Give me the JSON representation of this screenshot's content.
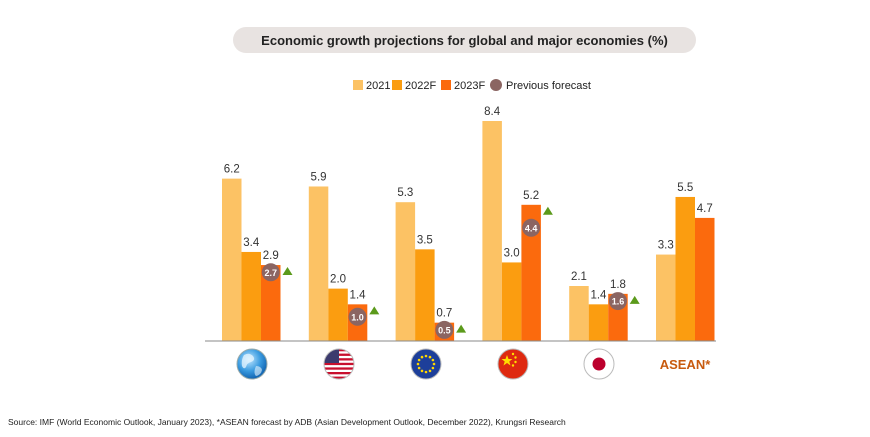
{
  "chart_data": {
    "type": "bar",
    "title": "Economic growth projections for global and major economies (%)",
    "categories": [
      "Global",
      "US",
      "EU",
      "China",
      "Japan",
      "ASEAN*"
    ],
    "category_icons": [
      "globe-icon",
      "us-flag-icon",
      "eu-flag-icon",
      "china-flag-icon",
      "japan-flag-icon",
      ""
    ],
    "category_text_labels": [
      "",
      "",
      "",
      "",
      "",
      "ASEAN*"
    ],
    "series": [
      {
        "name": "2021",
        "color": "#fcc264",
        "values": [
          6.2,
          5.9,
          5.3,
          8.4,
          2.1,
          3.3
        ]
      },
      {
        "name": "2022F",
        "color": "#fb9d10",
        "values": [
          3.4,
          2.0,
          3.5,
          3.0,
          1.4,
          5.5
        ]
      },
      {
        "name": "2023F",
        "color": "#fb6a0d",
        "values": [
          2.9,
          1.4,
          0.7,
          5.2,
          1.8,
          4.7
        ]
      }
    ],
    "previous_forecast": {
      "name": "Previous forecast",
      "color": "#8b6562",
      "values": [
        2.7,
        1.0,
        0.5,
        4.4,
        1.6,
        null
      ],
      "labels": [
        "2.7",
        "1.0",
        "0.5",
        "4.4",
        "1.6",
        ""
      ]
    },
    "revision_arrow": {
      "direction": "up",
      "color": "#5b9a1b",
      "categories": [
        0,
        1,
        2,
        3,
        4
      ]
    },
    "value_labels": [
      [
        "6.2",
        "3.4",
        "2.9"
      ],
      [
        "5.9",
        "2.0",
        "1.4"
      ],
      [
        "5.3",
        "3.5",
        "0.7"
      ],
      [
        "8.4",
        "3.0",
        "5.2"
      ],
      [
        "2.1",
        "1.4",
        "1.8"
      ],
      [
        "3.3",
        "5.5",
        "4.7"
      ]
    ],
    "ylim": [
      0,
      8.4
    ],
    "legend_position": "top-center",
    "grid": false
  },
  "source": "Source: IMF (World Economic Outlook, January 2023), *ASEAN forecast by ADB (Asian Development Outlook, December 2022), Krungsri Research"
}
